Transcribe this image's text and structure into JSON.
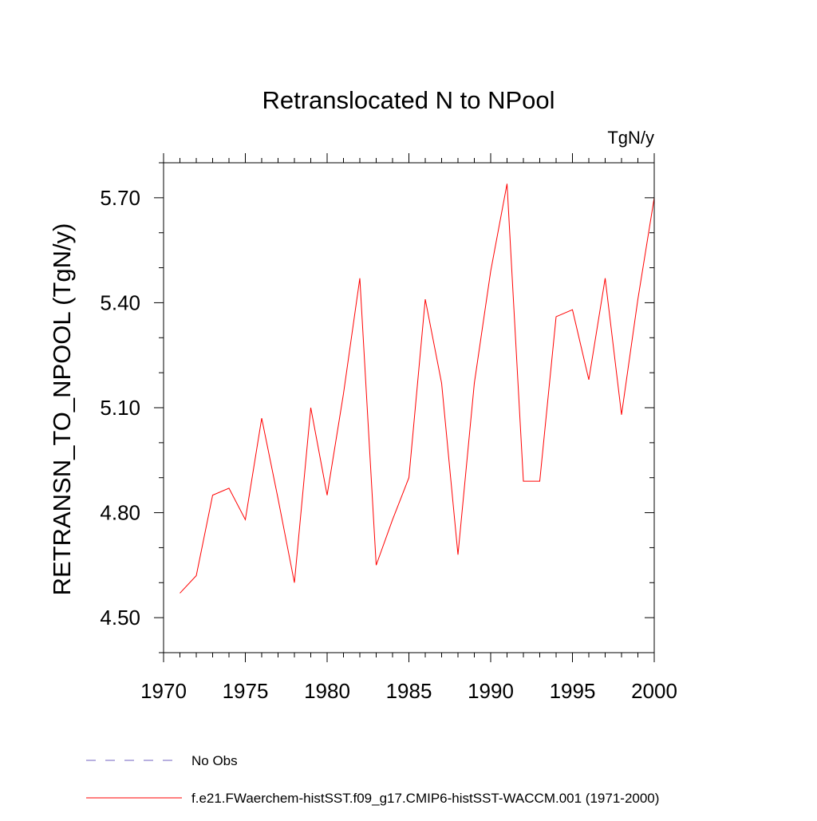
{
  "chart_data": {
    "type": "line",
    "title": "Retranslocated N to NPool",
    "units_label": "TgN/y",
    "ylabel": "RETRANSN_TO_NPOOL  (TgN/y)",
    "xlabel": "",
    "xlim": [
      1970,
      2000
    ],
    "ylim": [
      4.4,
      5.8
    ],
    "x_ticks": [
      1970,
      1975,
      1980,
      1985,
      1990,
      1995,
      2000
    ],
    "y_ticks": [
      4.5,
      4.8,
      5.1,
      5.4,
      5.7
    ],
    "y_tick_labels": [
      "4.50",
      "4.80",
      "5.10",
      "5.40",
      "5.70"
    ],
    "x_minor_step": 1,
    "y_minor_step": 0.1,
    "grid": false,
    "legend_position": "bottom-left",
    "series": [
      {
        "name": "f.e21.FWaerchem-histSST.f09_g17.CMIP6-histSST-WACCM.001 (1971-2000)",
        "color": "#ff0000",
        "style": "solid",
        "x": [
          1971,
          1972,
          1973,
          1974,
          1975,
          1976,
          1977,
          1978,
          1979,
          1980,
          1981,
          1982,
          1983,
          1984,
          1985,
          1986,
          1987,
          1988,
          1989,
          1990,
          1991,
          1992,
          1993,
          1994,
          1995,
          1996,
          1997,
          1998,
          1999,
          2000
        ],
        "values": [
          4.57,
          4.62,
          4.85,
          4.87,
          4.78,
          5.07,
          4.84,
          4.6,
          5.1,
          4.85,
          5.14,
          5.47,
          4.65,
          4.78,
          4.9,
          5.41,
          5.17,
          4.68,
          5.17,
          5.49,
          5.74,
          4.89,
          4.89,
          5.36,
          5.38,
          5.18,
          5.47,
          5.08,
          5.41,
          5.7
        ]
      }
    ],
    "legend": [
      {
        "label": "No Obs",
        "color": "#7060c0",
        "style": "dashed"
      },
      {
        "label": "f.e21.FWaerchem-histSST.f09_g17.CMIP6-histSST-WACCM.001 (1971-2000)",
        "color": "#ff0000",
        "style": "solid"
      }
    ]
  }
}
